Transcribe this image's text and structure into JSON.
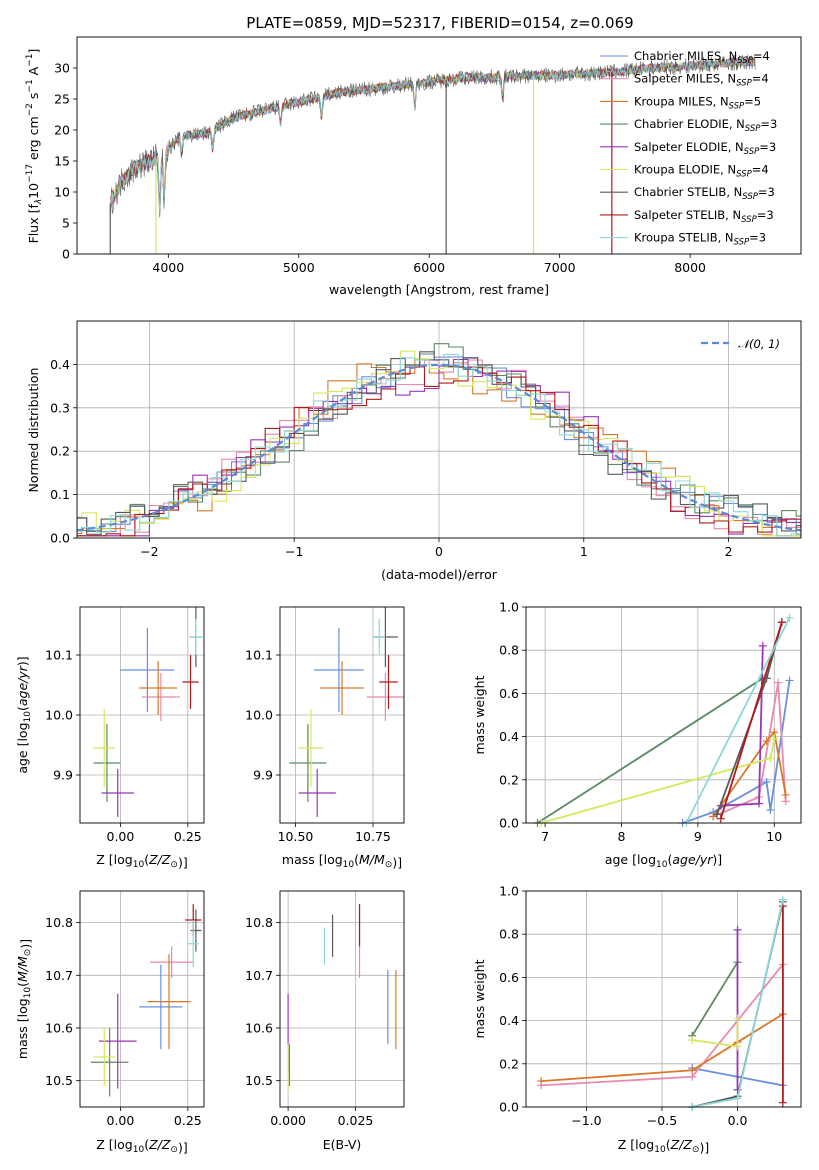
{
  "title": "PLATE=0859, MJD=52317, FIBERID=0154, z=0.069",
  "models": [
    {
      "name": "Chabrier MILES, N",
      "sub": "SSP",
      "suffix": "=4",
      "color": "#6a8fdc"
    },
    {
      "name": "Salpeter MILES, N",
      "sub": "SSP",
      "suffix": "=4",
      "color": "#e889b0"
    },
    {
      "name": "Kroupa MILES, N",
      "sub": "SSP",
      "suffix": "=5",
      "color": "#d9782a"
    },
    {
      "name": "Chabrier ELODIE, N",
      "sub": "SSP",
      "suffix": "=3",
      "color": "#5b8a64"
    },
    {
      "name": "Salpeter ELODIE, N",
      "sub": "SSP",
      "suffix": "=3",
      "color": "#9b35b8"
    },
    {
      "name": "Kroupa ELODIE, N",
      "sub": "SSP",
      "suffix": "=4",
      "color": "#d4e85a"
    },
    {
      "name": "Chabrier STELIB, N",
      "sub": "SSP",
      "suffix": "=3",
      "color": "#5a5a5a"
    },
    {
      "name": "Salpeter STELIB, N",
      "sub": "SSP",
      "suffix": "=3",
      "color": "#b01a1a"
    },
    {
      "name": "Kroupa STELIB, N",
      "sub": "SSP",
      "suffix": "=3",
      "color": "#8dd8d8"
    }
  ],
  "chart_data": [
    {
      "id": "spectrum",
      "type": "line",
      "xlabel": "wavelength [Angstrom, rest frame]",
      "ylabel_parts": {
        "a": "Flux [f",
        "b": "λ",
        "c": "10",
        "d": "−17",
        "e": " erg cm",
        "f": "−2",
        "g": " s",
        "h": "−1",
        "i": " A",
        "j": "−1",
        "k": "]"
      },
      "xlim": [
        3300,
        8850
      ],
      "ylim": [
        0,
        35
      ],
      "xticks": [
        4000,
        5000,
        6000,
        7000,
        8000
      ],
      "yticks": [
        0,
        5,
        10,
        15,
        20,
        25,
        30
      ],
      "envelope": [
        [
          3550,
          8
        ],
        [
          3650,
          12
        ],
        [
          3750,
          14
        ],
        [
          3850,
          15
        ],
        [
          3950,
          16
        ],
        [
          4100,
          19
        ],
        [
          4300,
          19.5
        ],
        [
          4500,
          22
        ],
        [
          4700,
          23
        ],
        [
          4900,
          24
        ],
        [
          5100,
          25
        ],
        [
          5300,
          26
        ],
        [
          5500,
          26.5
        ],
        [
          5700,
          27
        ],
        [
          5900,
          27.5
        ],
        [
          6100,
          28
        ],
        [
          6300,
          28.5
        ],
        [
          6500,
          28.5
        ],
        [
          6700,
          28.7
        ],
        [
          6900,
          28.8
        ],
        [
          7100,
          29
        ],
        [
          7300,
          29.2
        ],
        [
          7500,
          29.5
        ],
        [
          7700,
          30
        ],
        [
          7900,
          30.2
        ],
        [
          8100,
          30.5
        ],
        [
          8300,
          30.8
        ],
        [
          8500,
          31
        ]
      ],
      "absorption": [
        [
          3934,
          7
        ],
        [
          3968,
          9
        ],
        [
          4102,
          16
        ],
        [
          4340,
          17
        ],
        [
          4861,
          21
        ],
        [
          5175,
          22
        ],
        [
          5890,
          24
        ],
        [
          6563,
          25
        ]
      ],
      "spikes": [
        [
          3555,
          0
        ],
        [
          3905,
          0
        ],
        [
          6130,
          0
        ],
        [
          6800,
          0
        ],
        [
          7400,
          0
        ]
      ]
    },
    {
      "id": "residuals",
      "type": "histogram",
      "xlabel": "(data-model)/error",
      "ylabel": "Normed distribution",
      "xlim": [
        -2.5,
        2.5
      ],
      "ylim": [
        0,
        0.5
      ],
      "xticks": [
        -2,
        -1,
        0,
        1,
        2
      ],
      "yticks": [
        0,
        0.1,
        0.2,
        0.3,
        0.4
      ],
      "gaussian": {
        "label": "𝒩(0, 1)",
        "mu": 0,
        "sigma": 1
      },
      "jitter": [
        0.012,
        -0.018,
        0.025,
        -0.02,
        0.03,
        -0.025,
        0.02,
        -0.03,
        0.015
      ]
    },
    {
      "id": "age_vs_Z",
      "type": "scatter",
      "xlabel": "Z [log10(Z/Z☉)]",
      "ylabel": "age  [log10(age/yr)]",
      "xlim": [
        -0.15,
        0.31
      ],
      "ylim": [
        9.82,
        10.18
      ],
      "xticks": [
        0.0,
        0.25
      ],
      "yticks": [
        9.9,
        10.0,
        10.1
      ],
      "points": [
        {
          "m": 0,
          "x": 0.1,
          "xe": 0.1,
          "y": 10.075,
          "ye": 0.07
        },
        {
          "m": 1,
          "x": 0.15,
          "xe": 0.07,
          "y": 10.03,
          "ye": 0.04
        },
        {
          "m": 2,
          "x": 0.14,
          "xe": 0.07,
          "y": 10.045,
          "ye": 0.045
        },
        {
          "m": 3,
          "x": -0.05,
          "xe": 0.05,
          "y": 9.92,
          "ye": 0.065
        },
        {
          "m": 4,
          "x": -0.01,
          "xe": 0.06,
          "y": 9.87,
          "ye": 0.04
        },
        {
          "m": 5,
          "x": -0.06,
          "xe": 0.04,
          "y": 9.945,
          "ye": 0.065
        },
        {
          "m": 6,
          "x": 0.28,
          "xe": 0.02,
          "y": 10.13,
          "ye": 0.05
        },
        {
          "m": 7,
          "x": 0.26,
          "xe": 0.03,
          "y": 10.055,
          "ye": 0.045
        },
        {
          "m": 8,
          "x": 0.28,
          "xe": 0.025,
          "y": 10.13,
          "ye": 0.03
        }
      ]
    },
    {
      "id": "age_vs_mass",
      "type": "scatter",
      "xlabel": "mass [log10(M/M☉)]",
      "ylabel": "",
      "xlim": [
        10.45,
        10.85
      ],
      "ylim": [
        9.82,
        10.18
      ],
      "xticks": [
        10.5,
        10.75
      ],
      "yticks": [
        9.9,
        10.0,
        10.1
      ],
      "points": [
        {
          "m": 0,
          "x": 10.64,
          "xe": 0.08,
          "y": 10.075,
          "ye": 0.07
        },
        {
          "m": 1,
          "x": 10.79,
          "xe": 0.06,
          "y": 10.03,
          "ye": 0.04
        },
        {
          "m": 2,
          "x": 10.65,
          "xe": 0.07,
          "y": 10.045,
          "ye": 0.045
        },
        {
          "m": 3,
          "x": 10.54,
          "xe": 0.06,
          "y": 9.92,
          "ye": 0.065
        },
        {
          "m": 4,
          "x": 10.57,
          "xe": 0.06,
          "y": 9.87,
          "ye": 0.04
        },
        {
          "m": 5,
          "x": 10.55,
          "xe": 0.04,
          "y": 9.945,
          "ye": 0.065
        },
        {
          "m": 6,
          "x": 10.79,
          "xe": 0.04,
          "y": 10.13,
          "ye": 0.05
        },
        {
          "m": 7,
          "x": 10.8,
          "xe": 0.03,
          "y": 10.055,
          "ye": 0.045
        },
        {
          "m": 8,
          "x": 10.77,
          "xe": 0.02,
          "y": 10.13,
          "ye": 0.03
        }
      ]
    },
    {
      "id": "weight_vs_age",
      "type": "line",
      "xlabel": "age  [log10(age/yr)]",
      "ylabel": "mass weight",
      "xlim": [
        6.75,
        10.35
      ],
      "ylim": [
        0,
        1
      ],
      "xticks": [
        7,
        8,
        9,
        10
      ],
      "yticks": [
        0.0,
        0.2,
        0.4,
        0.6,
        0.8,
        1.0
      ],
      "series": [
        {
          "m": 0,
          "x": [
            8.8,
            9.2,
            9.9,
            9.95,
            10.2
          ],
          "y": [
            0.0,
            0.05,
            0.19,
            0.06,
            0.66
          ]
        },
        {
          "m": 1,
          "x": [
            9.2,
            9.8,
            10.05,
            10.15
          ],
          "y": [
            0.03,
            0.12,
            0.65,
            0.1
          ]
        },
        {
          "m": 2,
          "x": [
            9.2,
            9.9,
            10.0,
            10.15
          ],
          "y": [
            0.03,
            0.38,
            0.42,
            0.13
          ]
        },
        {
          "m": 3,
          "x": [
            6.9,
            9.85
          ],
          "y": [
            0.0,
            0.67
          ]
        },
        {
          "m": 4,
          "x": [
            9.3,
            9.8,
            9.85
          ],
          "y": [
            0.08,
            0.09,
            0.82
          ]
        },
        {
          "m": 5,
          "x": [
            6.95,
            9.95,
            10.0
          ],
          "y": [
            0.0,
            0.3,
            0.39
          ]
        },
        {
          "m": 6,
          "x": [
            9.25,
            9.9,
            10.1
          ],
          "y": [
            0.04,
            0.67,
            0.93
          ]
        },
        {
          "m": 7,
          "x": [
            9.3,
            10.1
          ],
          "y": [
            0.02,
            0.93
          ]
        },
        {
          "m": 8,
          "x": [
            8.85,
            10.2
          ],
          "y": [
            0.0,
            0.95
          ]
        }
      ]
    },
    {
      "id": "mass_vs_Z",
      "type": "scatter",
      "xlabel": "Z [log10(Z/Z☉)]",
      "ylabel": "mass [log10(M/M☉)]",
      "xlim": [
        -0.15,
        0.31
      ],
      "ylim": [
        10.45,
        10.86
      ],
      "xticks": [
        0.0,
        0.25
      ],
      "yticks": [
        10.5,
        10.6,
        10.7,
        10.8
      ],
      "points": [
        {
          "m": 0,
          "x": 0.15,
          "xe": 0.08,
          "y": 10.64,
          "ye": 0.08
        },
        {
          "m": 1,
          "x": 0.19,
          "xe": 0.08,
          "y": 10.725,
          "ye": 0.03
        },
        {
          "m": 2,
          "x": 0.18,
          "xe": 0.08,
          "y": 10.65,
          "ye": 0.09
        },
        {
          "m": 3,
          "x": -0.04,
          "xe": 0.07,
          "y": 10.535,
          "ye": 0.065
        },
        {
          "m": 4,
          "x": -0.01,
          "xe": 0.07,
          "y": 10.575,
          "ye": 0.09
        },
        {
          "m": 5,
          "x": -0.06,
          "xe": 0.04,
          "y": 10.545,
          "ye": 0.055
        },
        {
          "m": 6,
          "x": 0.28,
          "xe": 0.02,
          "y": 10.785,
          "ye": 0.04
        },
        {
          "m": 7,
          "x": 0.27,
          "xe": 0.03,
          "y": 10.805,
          "ye": 0.03
        },
        {
          "m": 8,
          "x": 0.27,
          "xe": 0.02,
          "y": 10.76,
          "ye": 0.045
        }
      ]
    },
    {
      "id": "mass_vs_ebv",
      "type": "scatter",
      "xlabel": "E(B-V)",
      "ylabel": "",
      "xlim": [
        -0.003,
        0.043
      ],
      "ylim": [
        10.45,
        10.86
      ],
      "xticks": [
        0.0,
        0.025
      ],
      "yticks": [
        10.5,
        10.6,
        10.7,
        10.8
      ],
      "points": [
        {
          "m": 0,
          "x": 0.037,
          "xe": 0.0,
          "y": 10.64,
          "ye": 0.07
        },
        {
          "m": 1,
          "x": 0.0265,
          "xe": 0.0,
          "y": 10.765,
          "ye": 0.07
        },
        {
          "m": 2,
          "x": 0.04,
          "xe": 0.0,
          "y": 10.635,
          "ye": 0.075
        },
        {
          "m": 3,
          "x": 0.0005,
          "xe": 0.0,
          "y": 10.53,
          "ye": 0.04
        },
        {
          "m": 4,
          "x": 0.0,
          "xe": 0.0,
          "y": 10.59,
          "ye": 0.075
        },
        {
          "m": 5,
          "x": 0.0,
          "xe": 0.0,
          "y": 10.525,
          "ye": 0.045
        },
        {
          "m": 6,
          "x": 0.0165,
          "xe": 0.0,
          "y": 10.775,
          "ye": 0.04
        },
        {
          "m": 7,
          "x": 0.0265,
          "xe": 0.0,
          "y": 10.795,
          "ye": 0.04
        },
        {
          "m": 8,
          "x": 0.0135,
          "xe": 0.0,
          "y": 10.755,
          "ye": 0.035
        }
      ]
    },
    {
      "id": "weight_vs_Z",
      "type": "line",
      "xlabel": "Z [log10(Z/Z☉)]",
      "ylabel": "mass weight",
      "xlim": [
        -1.4,
        0.42
      ],
      "ylim": [
        0,
        1
      ],
      "xticks": [
        -1.0,
        -0.5,
        0.0
      ],
      "yticks": [
        0.0,
        0.2,
        0.4,
        0.6,
        0.8,
        1.0
      ],
      "series": [
        {
          "m": 0,
          "x": [
            -0.3,
            0.0,
            0.3
          ],
          "y": [
            0.18,
            0.14,
            0.1
          ]
        },
        {
          "m": 1,
          "x": [
            -1.3,
            -0.3,
            0.3
          ],
          "y": [
            0.1,
            0.14,
            0.66
          ]
        },
        {
          "m": 2,
          "x": [
            -1.3,
            -0.3,
            0.0,
            0.3
          ],
          "y": [
            0.12,
            0.17,
            0.3,
            0.43
          ]
        },
        {
          "m": 3,
          "x": [
            -0.3,
            0.0
          ],
          "y": [
            0.33,
            0.67
          ]
        },
        {
          "m": 4,
          "x": [
            0.0,
            0.0
          ],
          "y": [
            0.08,
            0.82
          ]
        },
        {
          "m": 5,
          "x": [
            -0.3,
            0.0,
            0.0
          ],
          "y": [
            0.31,
            0.28,
            0.41
          ]
        },
        {
          "m": 6,
          "x": [
            -0.3,
            0.0,
            0.3
          ],
          "y": [
            0.0,
            0.05,
            0.95
          ]
        },
        {
          "m": 7,
          "x": [
            0.3,
            0.3
          ],
          "y": [
            0.02,
            0.93
          ]
        },
        {
          "m": 8,
          "x": [
            -0.3,
            0.0,
            0.3
          ],
          "y": [
            0.0,
            0.04,
            0.96
          ]
        }
      ]
    }
  ]
}
